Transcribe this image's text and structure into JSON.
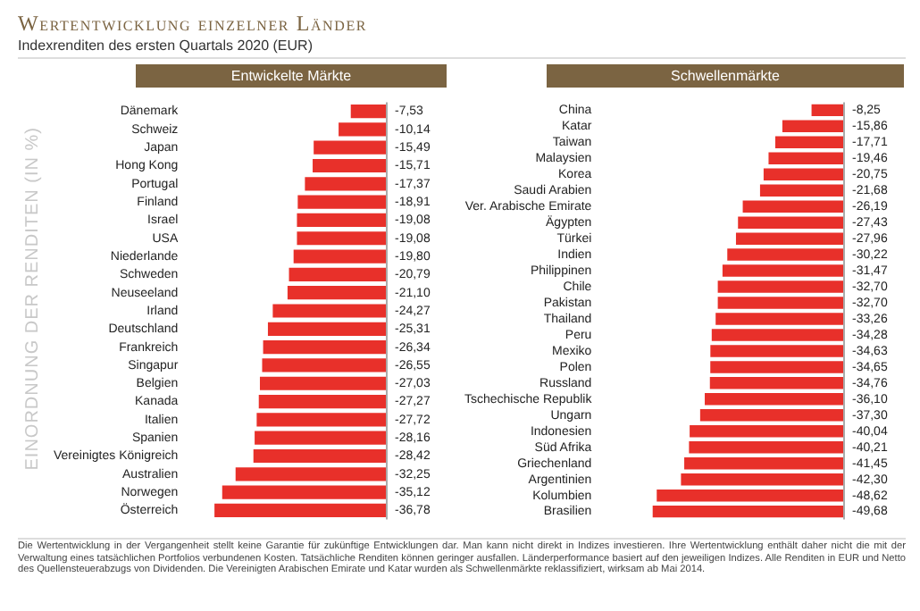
{
  "chart_data": [
    {
      "type": "other",
      "title": "Wertentwicklung einzelner Länder",
      "subtitle": "Indexrenditen des ersten Quartals 2020 (EUR)",
      "annotations": [
        "Die Wertentwicklung in der Vergangenheit stellt keine Garantie für zukünftige Entwicklungen dar. Man kann nicht direkt in Indizes investieren. Ihre Wertentwicklung enthält daher nicht die mit der Verwaltung eines tatsächlichen Portfolios verbundenen Kosten. Tatsächliche Renditen können geringer ausfallen. Länderperformance basiert auf den jeweiligen Indizes. Alle Renditen in EUR und Netto des Quellensteuerabzugs von Dividenden. Die Vereinigten Arabischen Emirate und Katar wurden als Schwellenmärkte reklassifiziert, wirksam ab Mai 2014."
      ]
    },
    {
      "type": "bar",
      "orientation": "horizontal",
      "title": "Entwickelte Märkte",
      "ylabel": "EINORDNUNG DER RENDITEN (IN %)",
      "categories": [
        "Dänemark",
        "Schweiz",
        "Japan",
        "Hong Kong",
        "Portugal",
        "Finland",
        "Israel",
        "USA",
        "Niederlande",
        "Schweden",
        "Neuseeland",
        "Irland",
        "Deutschland",
        "Frankreich",
        "Singapur",
        "Belgien",
        "Kanada",
        "Italien",
        "Spanien",
        "Vereinigtes Königreich",
        "Australien",
        "Norwegen",
        "Österreich"
      ],
      "series": [
        {
          "color": "#e8302a",
          "values": [
            -7.53,
            -10.14,
            -15.49,
            -15.71,
            -17.37,
            -18.91,
            -19.08,
            -19.08,
            -19.8,
            -20.79,
            -21.1,
            -24.27,
            -25.31,
            -26.34,
            -26.55,
            -27.03,
            -27.27,
            -27.72,
            -28.16,
            -28.42,
            -32.25,
            -35.12,
            -36.78
          ],
          "value_labels": [
            "-7,53",
            "-10,14",
            "-15,49",
            "-15,71",
            "-17,37",
            "-18,91",
            "-19,08",
            "-19,08",
            "-19,80",
            "-20,79",
            "-21,10",
            "-24,27",
            "-25,31",
            "-26,34",
            "-26,55",
            "-27,03",
            "-27,27",
            "-27,72",
            "-28,16",
            "-28,42",
            "-32,25",
            "-35,12",
            "-36,78"
          ]
        }
      ]
    },
    {
      "type": "bar",
      "orientation": "horizontal",
      "title": "Schwellenmärkte",
      "categories": [
        "China",
        "Katar",
        "Taiwan",
        "Malaysien",
        "Korea",
        "Saudi Arabien",
        "Ver. Arabische Emirate",
        "Ägypten",
        "Türkei",
        "Indien",
        "Philippinen",
        "Chile",
        "Pakistan",
        "Thailand",
        "Peru",
        "Mexiko",
        "Polen",
        "Russland",
        "Tschechische Republik",
        "Ungarn",
        "Indonesien",
        "Süd Afrika",
        "Griechenland",
        "Argentinien",
        "Kolumbien",
        "Brasilien"
      ],
      "series": [
        {
          "color": "#e8302a",
          "values": [
            -8.25,
            -15.86,
            -17.71,
            -19.46,
            -20.75,
            -21.68,
            -26.19,
            -27.43,
            -27.96,
            -30.22,
            -31.47,
            -32.7,
            -32.7,
            -33.26,
            -34.28,
            -34.63,
            -34.65,
            -34.76,
            -36.1,
            -37.3,
            -40.04,
            -40.21,
            -41.45,
            -42.3,
            -48.62,
            -49.68
          ],
          "value_labels": [
            "-8,25",
            "-15,86",
            "-17,71",
            "-19,46",
            "-20,75",
            "-21,68",
            "-26,19",
            "-27,43",
            "-27,96",
            "-30,22",
            "-31,47",
            "-32,70",
            "-32,70",
            "-33,26",
            "-34,28",
            "-34,63",
            "-34,65",
            "-34,76",
            "-36,10",
            "-37,30",
            "-40,04",
            "-40,21",
            "-41,45",
            "-42,30",
            "-48,62",
            "-49,68"
          ]
        }
      ]
    }
  ]
}
